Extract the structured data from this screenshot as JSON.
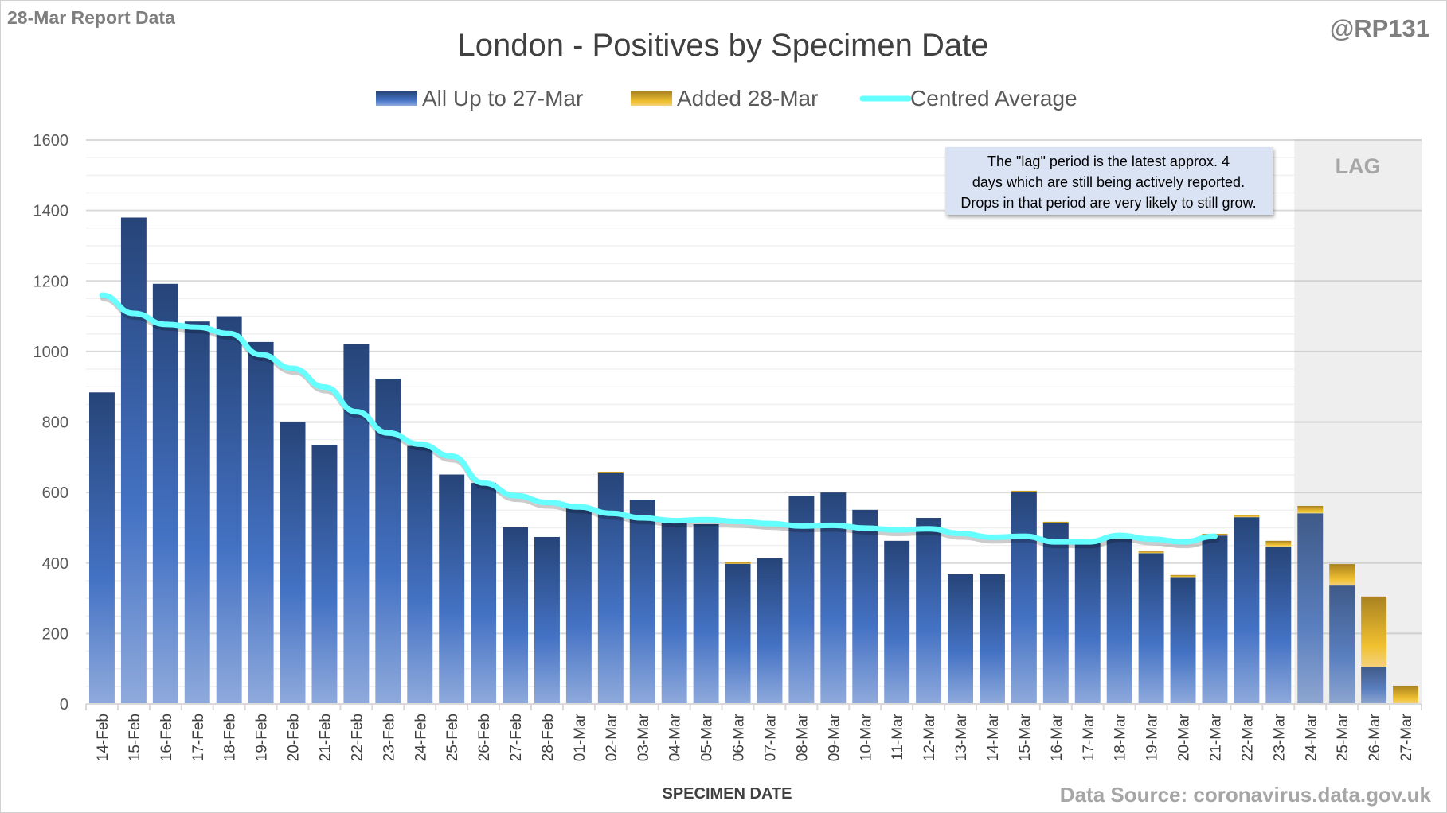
{
  "header": {
    "report_label": "28-Mar Report Data",
    "handle": "@RP131",
    "data_source": "Data Source: coronavirus.data.gov.uk"
  },
  "chart_data": {
    "type": "bar",
    "stacked": true,
    "title": "London - Positives by Specimen Date",
    "xlabel": "SPECIMEN DATE",
    "ylabel": "",
    "ylim": [
      0,
      1600
    ],
    "yticks": [
      0,
      200,
      400,
      600,
      800,
      1000,
      1200,
      1400,
      1600
    ],
    "grid": true,
    "legend_position": "top",
    "categories": [
      "14-Feb",
      "15-Feb",
      "16-Feb",
      "17-Feb",
      "18-Feb",
      "19-Feb",
      "20-Feb",
      "21-Feb",
      "22-Feb",
      "23-Feb",
      "24-Feb",
      "25-Feb",
      "26-Feb",
      "27-Feb",
      "28-Feb",
      "01-Mar",
      "02-Mar",
      "03-Mar",
      "04-Mar",
      "05-Mar",
      "06-Mar",
      "07-Mar",
      "08-Mar",
      "09-Mar",
      "10-Mar",
      "11-Mar",
      "12-Mar",
      "13-Mar",
      "14-Mar",
      "15-Mar",
      "16-Mar",
      "17-Mar",
      "18-Mar",
      "19-Mar",
      "20-Mar",
      "21-Mar",
      "22-Mar",
      "23-Mar",
      "24-Mar",
      "25-Mar",
      "26-Mar",
      "27-Mar"
    ],
    "series": [
      {
        "name": "All Up to 27-Mar",
        "kind": "bar",
        "color": "#4472c4",
        "values": [
          884,
          1380,
          1192,
          1085,
          1100,
          1027,
          800,
          735,
          1022,
          923,
          732,
          651,
          627,
          501,
          474,
          557,
          657,
          580,
          515,
          510,
          400,
          413,
          591,
          600,
          551,
          463,
          528,
          368,
          368,
          602,
          513,
          460,
          468,
          428,
          360,
          478,
          530,
          447,
          541,
          336,
          106,
          0
        ]
      },
      {
        "name": "Added 28-Mar",
        "kind": "bar",
        "color": "#ffc000",
        "values": [
          0,
          0,
          0,
          0,
          0,
          0,
          0,
          0,
          0,
          0,
          0,
          0,
          0,
          0,
          0,
          0,
          2,
          0,
          0,
          0,
          2,
          0,
          0,
          0,
          0,
          0,
          0,
          0,
          0,
          3,
          4,
          0,
          0,
          5,
          6,
          5,
          7,
          16,
          21,
          61,
          199,
          52
        ]
      },
      {
        "name": "Centred Average",
        "kind": "line",
        "color": "#66ffff",
        "values": [
          1160,
          1108,
          1077,
          1069,
          1051,
          991,
          952,
          899,
          829,
          769,
          737,
          703,
          627,
          591,
          572,
          559,
          541,
          528,
          520,
          523,
          518,
          512,
          505,
          507,
          499,
          494,
          497,
          484,
          473,
          476,
          460,
          460,
          478,
          468,
          460,
          476,
          null,
          null,
          null,
          null,
          null,
          null
        ]
      }
    ],
    "lag": {
      "label": "LAG",
      "start": "24-Mar",
      "end": "27-Mar",
      "shade_color": "#ececec"
    },
    "annotation": "The \"lag\" period is the latest approx. 4 days which are still being actively reported.  Drops in that period are very likely to still grow."
  }
}
